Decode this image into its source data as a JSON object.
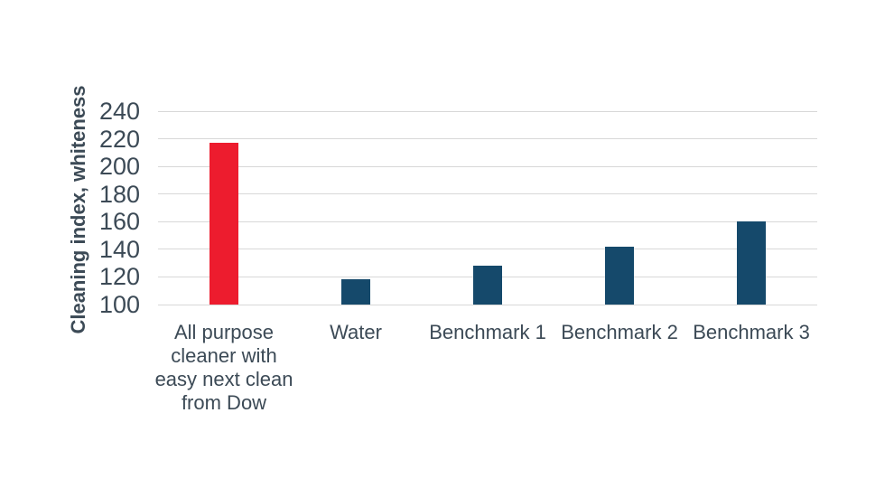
{
  "page": {
    "background": "#FFFFFF"
  },
  "chart_data": {
    "type": "bar",
    "title": "",
    "xlabel": "",
    "ylabel": "Cleaning index, whiteness",
    "categories": [
      "All purpose cleaner with easy next clean from Dow",
      "Water",
      "Benchmark 1",
      "Benchmark 2",
      "Benchmark 3"
    ],
    "category_lines": [
      [
        "All purpose",
        "cleaner with",
        "easy next clean",
        "from Dow"
      ],
      [
        "Water"
      ],
      [
        "Benchmark 1"
      ],
      [
        "Benchmark 2"
      ],
      [
        "Benchmark 3"
      ]
    ],
    "values": [
      217,
      118,
      128,
      142,
      160
    ],
    "ylim": [
      100,
      240
    ],
    "ytick_step": 20,
    "yticks": [
      100,
      120,
      140,
      160,
      180,
      200,
      220,
      240
    ],
    "grid": "horizontal-only",
    "legend": "none",
    "bar_colors": [
      "#ED1C2E",
      "#15496B",
      "#15496B",
      "#15496B",
      "#15496B"
    ],
    "colors": {
      "highlight_red": "#ED1C2E",
      "benchmark_blue": "#15496B",
      "text": "#3C4A56",
      "gridline": "#D8D8D8"
    }
  }
}
